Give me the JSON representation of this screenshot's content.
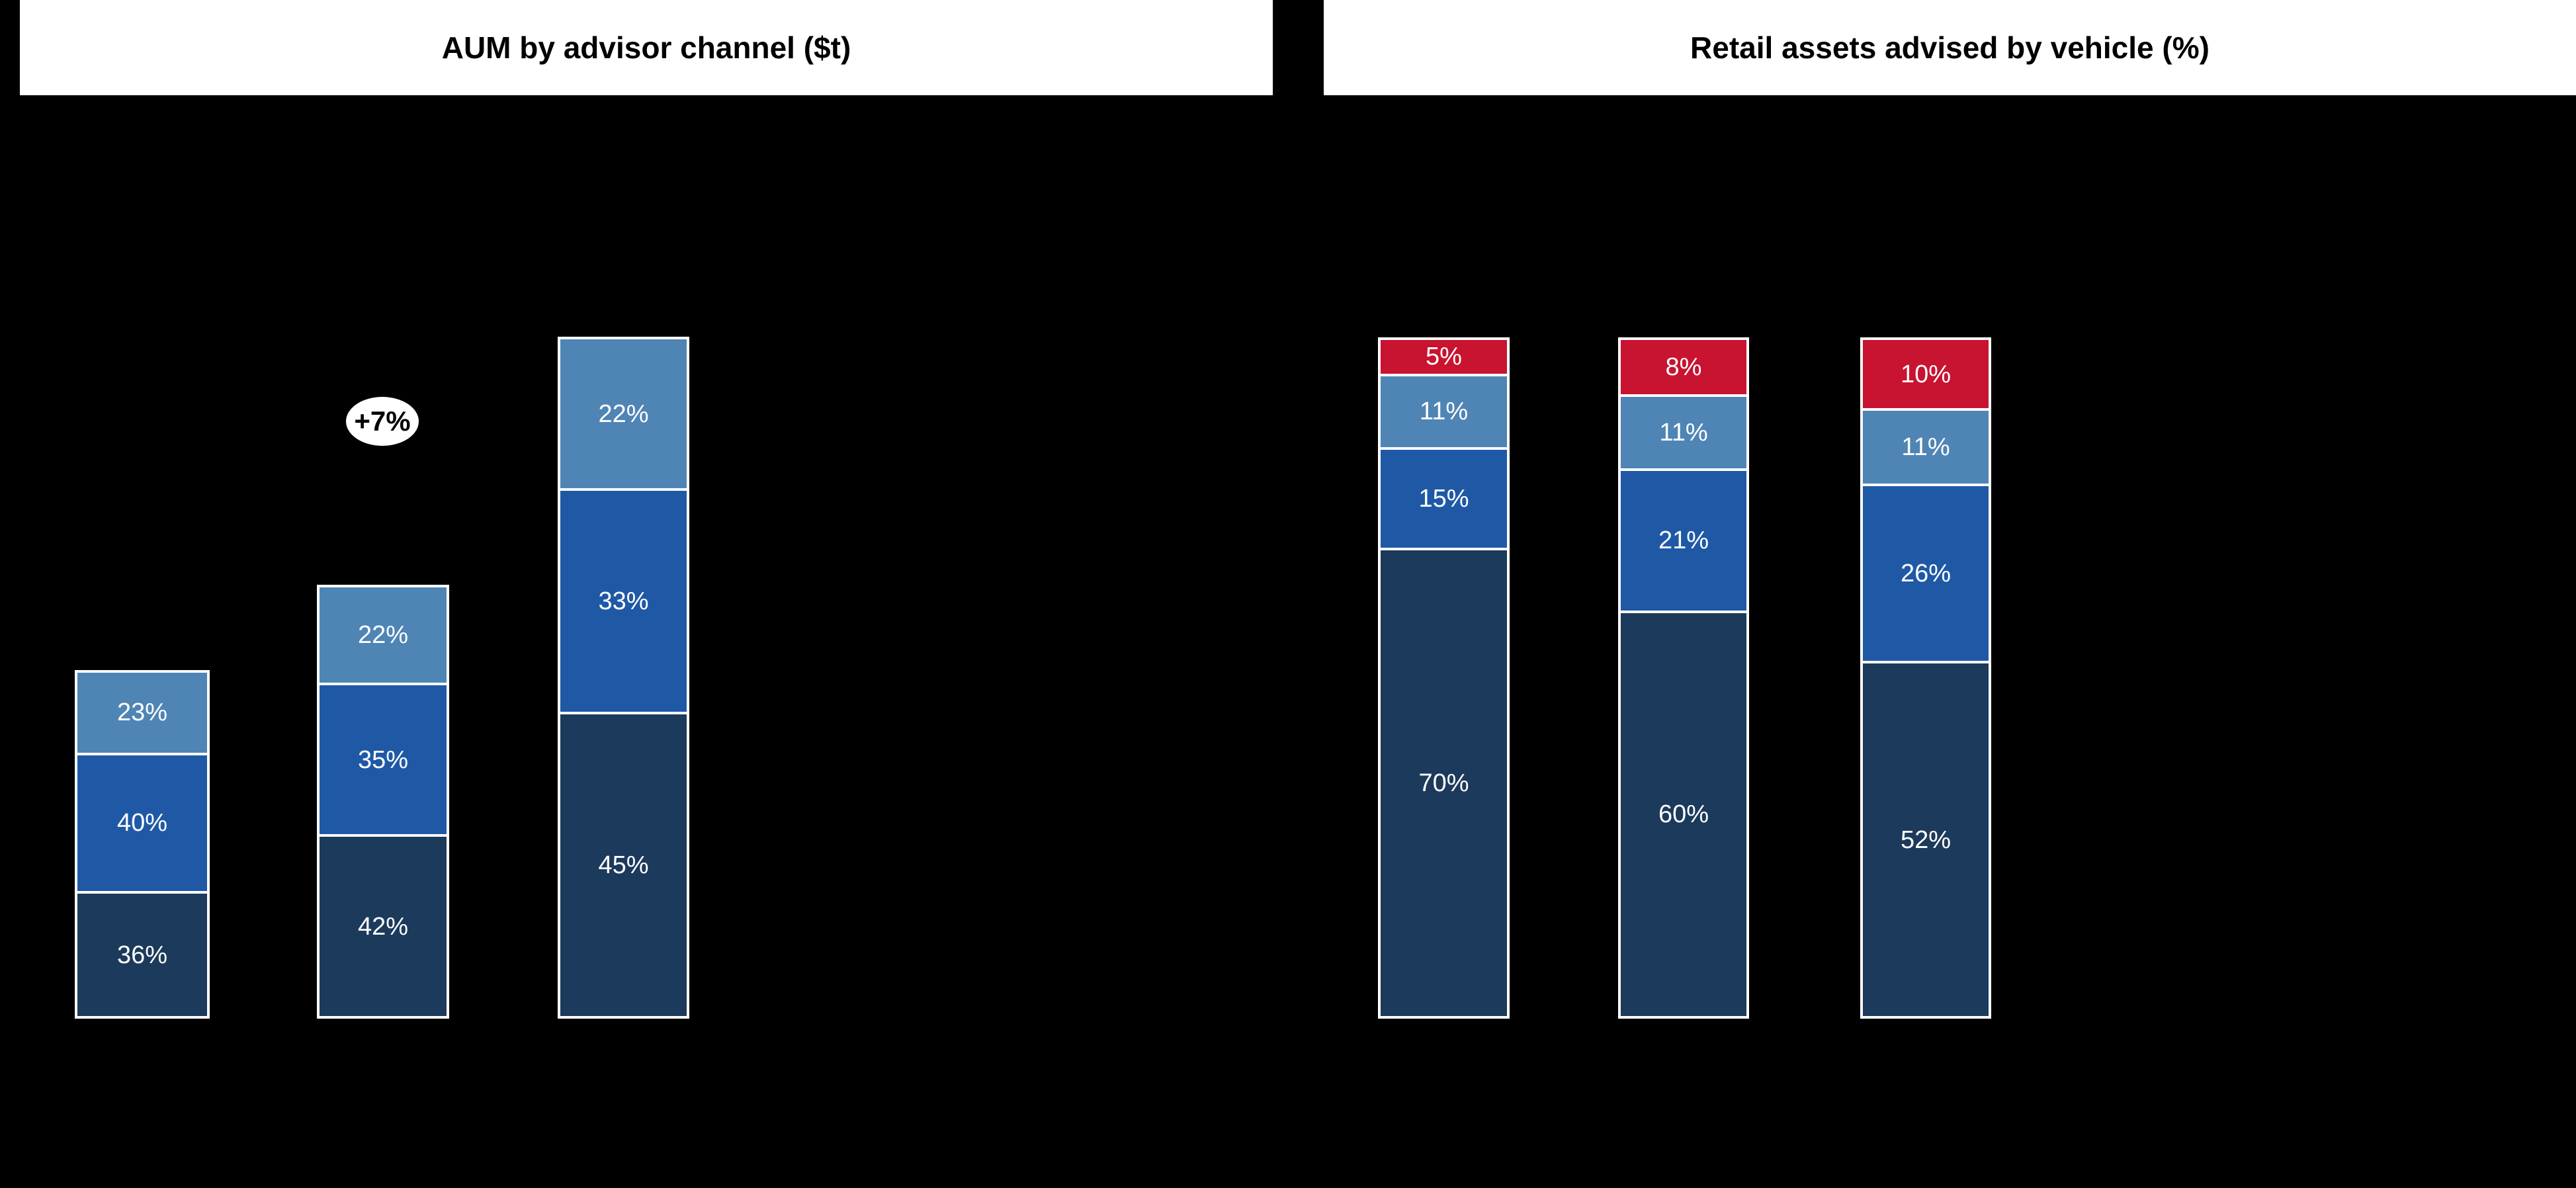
{
  "palette": {
    "background": "#000000",
    "title_bar_bg": "#FFFFFF",
    "title_text": "#000000",
    "segment_label_text": "#FFFFFF",
    "separator_white": "#FFFFFF",
    "dark_navy": "#1C3A5B",
    "medium_blue": "#1F59A6",
    "light_blue": "#4F85B5",
    "red": "#C81331",
    "annotation_bg": "#FFFFFF",
    "annotation_text": "#000000"
  },
  "chart_data": [
    {
      "type": "bar",
      "stacked": true,
      "orientation": "vertical",
      "title": "AUM by advisor channel ($t)",
      "axes_visible": false,
      "gridlines": false,
      "legend": "none",
      "value_unit": "% share of each bar (bar heights show relative total AUM, $t)",
      "annotation": {
        "text": "+7%",
        "style": "white ellipse with black bold text",
        "position": "above second bar"
      },
      "bars": [
        {
          "total_relative_height": 0.511,
          "segments_top_to_bottom": [
            {
              "label": "23%",
              "value": 23,
              "color": "light_blue"
            },
            {
              "label": "40%",
              "value": 40,
              "color": "medium_blue"
            },
            {
              "label": "36%",
              "value": 36,
              "color": "dark_navy"
            }
          ]
        },
        {
          "total_relative_height": 0.637,
          "segments_top_to_bottom": [
            {
              "label": "22%",
              "value": 22,
              "color": "light_blue"
            },
            {
              "label": "35%",
              "value": 35,
              "color": "medium_blue"
            },
            {
              "label": "42%",
              "value": 42,
              "color": "dark_navy"
            }
          ]
        },
        {
          "total_relative_height": 1.0,
          "segments_top_to_bottom": [
            {
              "label": "22%",
              "value": 22,
              "color": "light_blue"
            },
            {
              "label": "33%",
              "value": 33,
              "color": "medium_blue"
            },
            {
              "label": "45%",
              "value": 45,
              "color": "dark_navy"
            }
          ]
        }
      ]
    },
    {
      "type": "bar",
      "stacked": true,
      "orientation": "vertical",
      "title": "Retail assets advised by vehicle (%)",
      "axes_visible": false,
      "gridlines": false,
      "legend": "none",
      "value_unit": "% of retail assets (100% stacked bars)",
      "bars": [
        {
          "total_relative_height": 1.0,
          "segments_top_to_bottom": [
            {
              "label": "5%",
              "value": 5,
              "color": "red"
            },
            {
              "label": "11%",
              "value": 11,
              "color": "light_blue"
            },
            {
              "label": "15%",
              "value": 15,
              "color": "medium_blue"
            },
            {
              "label": "70%",
              "value": 70,
              "color": "dark_navy"
            }
          ]
        },
        {
          "total_relative_height": 1.0,
          "segments_top_to_bottom": [
            {
              "label": "8%",
              "value": 8,
              "color": "red"
            },
            {
              "label": "11%",
              "value": 11,
              "color": "light_blue"
            },
            {
              "label": "21%",
              "value": 21,
              "color": "medium_blue"
            },
            {
              "label": "60%",
              "value": 60,
              "color": "dark_navy"
            }
          ]
        },
        {
          "total_relative_height": 1.0,
          "segments_top_to_bottom": [
            {
              "label": "10%",
              "value": 10,
              "color": "red"
            },
            {
              "label": "11%",
              "value": 11,
              "color": "light_blue"
            },
            {
              "label": "26%",
              "value": 26,
              "color": "medium_blue"
            },
            {
              "label": "52%",
              "value": 52,
              "color": "dark_navy"
            }
          ]
        }
      ]
    }
  ]
}
